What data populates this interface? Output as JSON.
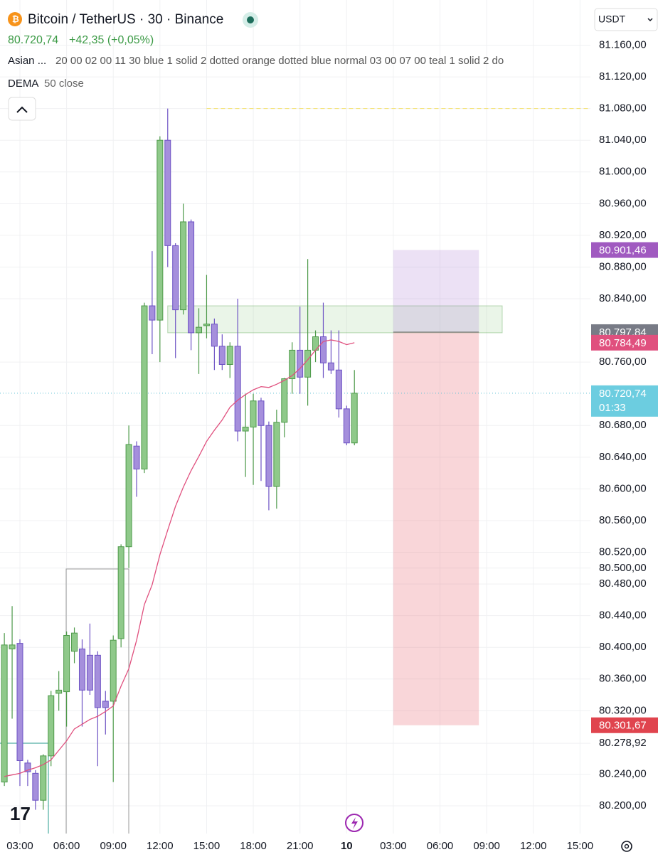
{
  "chart_data": {
    "type": "candlestick",
    "title": "Bitcoin / TetherUS · 30 · Binance",
    "last_price": "80.720,74",
    "change": "+42,35 (+0,05%)",
    "session_indicator": {
      "name": "Asian ...",
      "params": "20 00 02 00 11 30 blue 1 solid 2 dotted orange dotted blue normal 03 00 07 00 teal 1 solid 2 do"
    },
    "currency": "USDT",
    "colors": {
      "up": "#8fc98a",
      "up_border": "#4e9a4a",
      "down": "#a58fdc",
      "down_border": "#6d52c4"
    },
    "x": [
      2,
      2.5,
      3,
      3.5,
      4,
      4.5,
      5,
      5.5,
      6,
      6.5,
      7,
      7.5,
      8,
      8.5,
      9,
      9.5,
      10,
      10.5,
      11,
      11.5,
      12,
      12.5,
      13,
      13.5,
      14,
      14.5,
      15,
      15.5,
      16,
      16.5,
      17,
      17.5,
      18,
      18.5,
      19,
      19.5,
      20,
      20.5,
      21,
      21.5,
      22,
      22.5,
      23,
      23.5,
      24,
      24.5
    ],
    "open": [
      80230,
      80398,
      80405,
      80254,
      80241,
      80207,
      80263,
      80342,
      80344,
      80395,
      80398,
      80390,
      80390,
      80332,
      80332,
      80411,
      80527,
      80654,
      80625,
      80831,
      80813,
      81040,
      80907,
      80826,
      80937,
      80797,
      80806,
      80808,
      80780,
      80757,
      80780,
      80673,
      80678,
      80711,
      80680,
      80603,
      80684,
      80739,
      80775,
      80741,
      80775,
      80792,
      80759,
      80750,
      80701,
      80658
    ],
    "high": [
      80418,
      80452,
      80410,
      80258,
      80245,
      80265,
      80345,
      80370,
      80420,
      80425,
      80410,
      80430,
      80395,
      80345,
      80415,
      80530,
      80680,
      80660,
      80835,
      80900,
      81045,
      81080,
      80910,
      80960,
      80940,
      80828,
      80870,
      80815,
      80795,
      80785,
      80840,
      80720,
      80720,
      80715,
      80685,
      80700,
      80740,
      80785,
      80830,
      80890,
      80800,
      80835,
      80800,
      80800,
      80705,
      80750
    ],
    "low": [
      80225,
      80310,
      80225,
      80225,
      80195,
      80195,
      80250,
      80320,
      80300,
      80380,
      80300,
      80340,
      80250,
      80290,
      80230,
      80400,
      80500,
      80590,
      80620,
      80770,
      80760,
      80880,
      80765,
      80820,
      80775,
      80745,
      80790,
      80750,
      80750,
      80740,
      80660,
      80615,
      80605,
      80610,
      80573,
      80575,
      80665,
      80720,
      80720,
      80705,
      80760,
      80740,
      80745,
      80690,
      80655,
      80655
    ],
    "close": [
      80403,
      80403,
      80257,
      80243,
      80207,
      80263,
      80339,
      80346,
      80415,
      80418,
      80346,
      80346,
      80324,
      80324,
      80409,
      80527,
      80656,
      80625,
      80831,
      80813,
      81040,
      80907,
      80826,
      80937,
      80797,
      80804,
      80808,
      80780,
      80757,
      80780,
      80673,
      80678,
      80711,
      80680,
      80603,
      80684,
      80739,
      80775,
      80741,
      80775,
      80792,
      80759,
      80750,
      80701,
      80658,
      80720.74
    ],
    "indicator": {
      "name": "DEMA",
      "params": "50 close",
      "color": "#e0507e",
      "last_label": "80.784,49",
      "values": [
        80237,
        80239,
        80241,
        80245,
        80248,
        80252,
        80258,
        80270,
        80282,
        80297,
        80303,
        80309,
        80313,
        80319,
        80326,
        80351,
        80373,
        80409,
        80454,
        80479,
        80517,
        80548,
        80578,
        80602,
        80623,
        80641,
        80660,
        80674,
        80687,
        80703,
        80712,
        80719,
        80725,
        80729,
        80728,
        80732,
        80737,
        80743,
        80752,
        80763,
        80775,
        80786,
        80788,
        80786,
        80782,
        80784.49
      ]
    },
    "position": {
      "x_start": 27,
      "x_end": 32.5,
      "target": {
        "value": 80901.46,
        "label": "80.901,46"
      },
      "entry": {
        "value": 80797.84,
        "label": "80.797,84"
      },
      "stop": {
        "value": 80301.67,
        "label": "80.301,67"
      }
    },
    "zone": {
      "top": 80831,
      "bottom": 80797,
      "x_start": 12.5,
      "x_end": 34
    },
    "level": {
      "value": 81080,
      "x_start": 15
    },
    "current": {
      "value": 80720.74,
      "label": "80.720,74",
      "countdown": "01:33"
    },
    "xlim": [
      1.72,
      39.67
    ],
    "ylim": [
      80165,
      81217
    ],
    "xticks": [
      {
        "value": 3,
        "label": "03:00"
      },
      {
        "value": 6,
        "label": "06:00"
      },
      {
        "value": 9,
        "label": "09:00"
      },
      {
        "value": 12,
        "label": "12:00"
      },
      {
        "value": 15,
        "label": "15:00"
      },
      {
        "value": 18,
        "label": "18:00"
      },
      {
        "value": 21,
        "label": "21:00"
      },
      {
        "value": 24,
        "label": "10"
      },
      {
        "value": 27,
        "label": "03:00"
      },
      {
        "value": 30,
        "label": "06:00"
      },
      {
        "value": 33,
        "label": "09:00"
      },
      {
        "value": 36,
        "label": "12:00"
      },
      {
        "value": 39,
        "label": "15:00"
      }
    ],
    "yticks": [
      {
        "value": 80200,
        "label": "80.200,00"
      },
      {
        "value": 80240,
        "label": "80.240,00"
      },
      {
        "value": 80278.92,
        "label": "80.278,92"
      },
      {
        "value": 80320,
        "label": "80.320,00"
      },
      {
        "value": 80360,
        "label": "80.360,00"
      },
      {
        "value": 80400,
        "label": "80.400,00"
      },
      {
        "value": 80440,
        "label": "80.440,00"
      },
      {
        "value": 80480,
        "label": "80.480,00"
      },
      {
        "value": 80500,
        "label": "80.500,00"
      },
      {
        "value": 80520,
        "label": "80.520,00"
      },
      {
        "value": 80560,
        "label": "80.560,00"
      },
      {
        "value": 80600,
        "label": "80.600,00"
      },
      {
        "value": 80640,
        "label": "80.640,00"
      },
      {
        "value": 80680,
        "label": "80.680,00"
      },
      {
        "value": 80760,
        "label": "80.760,00"
      },
      {
        "value": 80840,
        "label": "80.840,00"
      },
      {
        "value": 80880,
        "label": "80.880,00"
      },
      {
        "value": 80920,
        "label": "80.920,00"
      },
      {
        "value": 80960,
        "label": "80.960,00"
      },
      {
        "value": 81000,
        "label": "81.000,00"
      },
      {
        "value": 81040,
        "label": "81.040,00"
      },
      {
        "value": 81080,
        "label": "81.080,00"
      },
      {
        "value": 81120,
        "label": "81.120,00"
      },
      {
        "value": 81160,
        "label": "81.160,00"
      }
    ],
    "grid": true
  }
}
